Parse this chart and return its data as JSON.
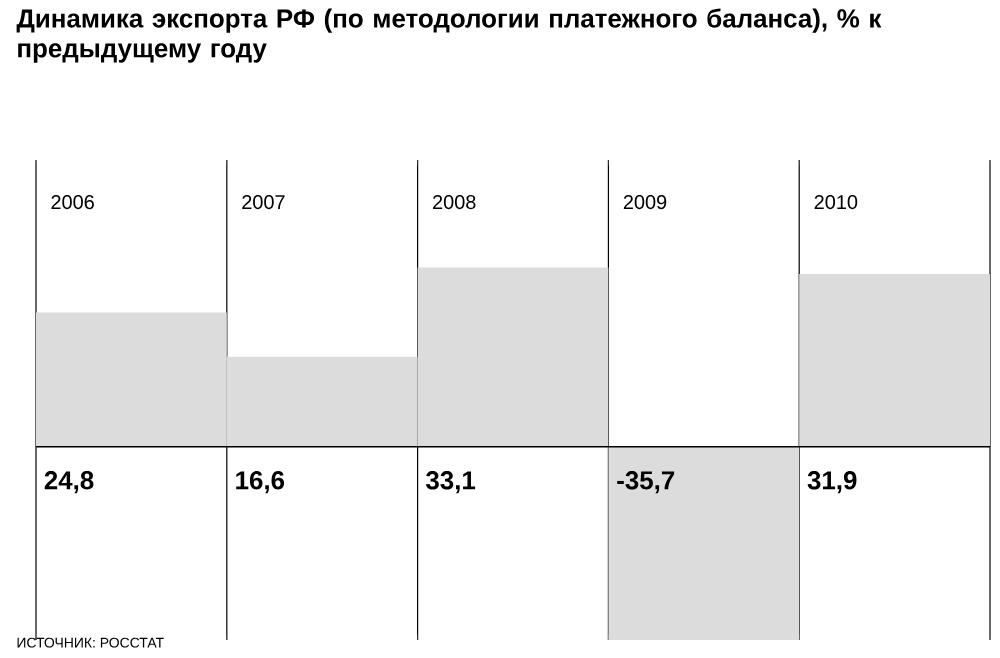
{
  "chart_data": {
    "type": "bar",
    "title": "Динамика экспорта РФ (по методологии платежного баланса), % к предыдущему году",
    "categories": [
      "2006",
      "2007",
      "2008",
      "2009",
      "2010"
    ],
    "values": [
      24.8,
      16.6,
      33.1,
      -35.7,
      31.9
    ],
    "color": "#dcdcdc",
    "value_labels": [
      "24,8",
      "16,6",
      "33,1",
      "-35,7",
      "31,9"
    ],
    "grid": "x",
    "annotations": [
      "ИСТОЧНИК: РОССТАТ"
    ]
  }
}
